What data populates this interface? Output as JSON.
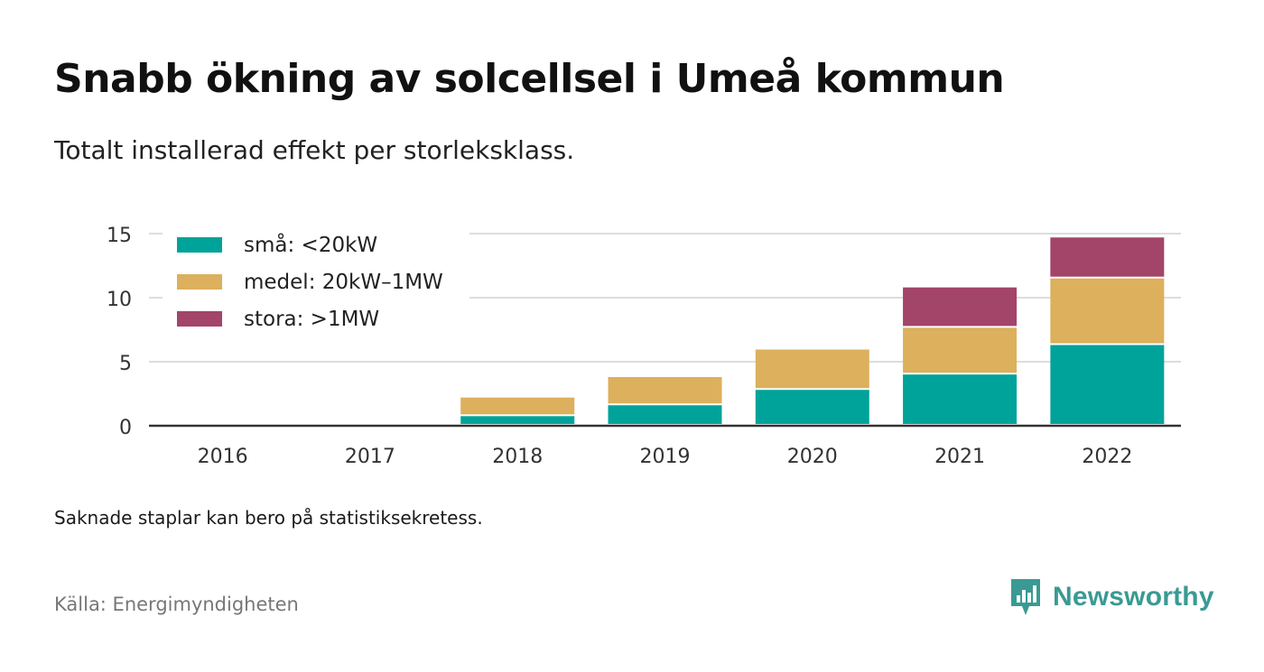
{
  "header": {
    "title": "Snabb ökning av solcellsel i Umeå kommun",
    "subtitle": "Totalt installerad effekt per storleksklass."
  },
  "footer": {
    "note": "Saknade staplar kan bero på statistiksekretess.",
    "source": "Källa: Energimyndigheten",
    "brand": "Newsworthy"
  },
  "colors": {
    "sma": "#00a399",
    "medel": "#dcb05c",
    "stora": "#a34469",
    "grid": "#dddddd",
    "axis": "#333333",
    "brand": "#3a9a93"
  },
  "chart_data": {
    "type": "bar",
    "stacked": true,
    "categories": [
      "2016",
      "2017",
      "2018",
      "2019",
      "2020",
      "2021",
      "2022"
    ],
    "series": [
      {
        "name": "små: <20kW",
        "color": "#00a399",
        "values": [
          0,
          0,
          0.75,
          1.6,
          2.8,
          4.0,
          6.3
        ]
      },
      {
        "name": "medel: 20kW–1MW",
        "color": "#dcb05c",
        "values": [
          0,
          0,
          1.45,
          2.2,
          3.15,
          3.65,
          5.2
        ]
      },
      {
        "name": "stora: >1MW",
        "color": "#a34469",
        "values": [
          0,
          0,
          0,
          0,
          0,
          3.15,
          3.2
        ]
      }
    ],
    "ylim": [
      0,
      15
    ],
    "yticks": [
      0,
      5,
      10,
      15
    ],
    "grid": true,
    "legend_position": "top-left",
    "xlabel": "",
    "ylabel": ""
  }
}
